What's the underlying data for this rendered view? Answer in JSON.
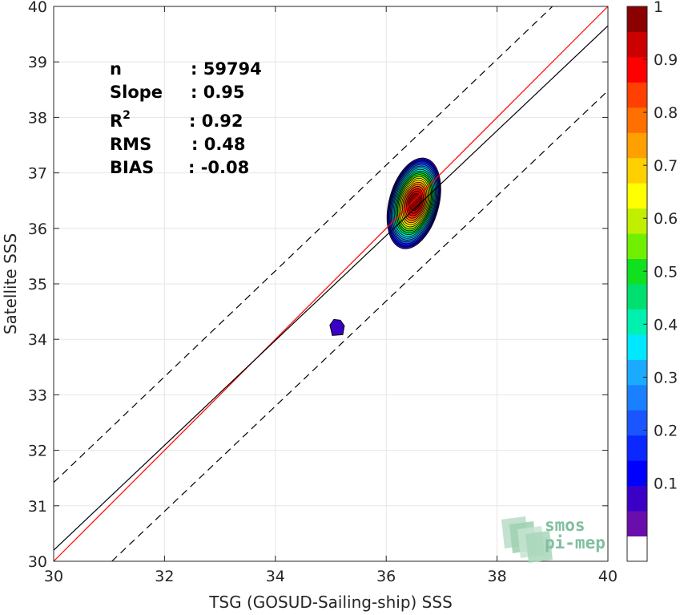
{
  "chart_data": {
    "type": "scatter",
    "subtype": "density-contour",
    "xlabel": "TSG (GOSUD-Sailing-ship) SSS",
    "ylabel": "Satellite SSS",
    "xlim": [
      30,
      40
    ],
    "ylim": [
      30,
      40
    ],
    "x_ticks": [
      "30",
      "32",
      "34",
      "36",
      "38",
      "40"
    ],
    "y_ticks": [
      "30",
      "31",
      "32",
      "33",
      "34",
      "35",
      "36",
      "37",
      "38",
      "39",
      "40"
    ],
    "grid": true,
    "stats": [
      {
        "key": "n",
        "value": ": 59794"
      },
      {
        "key": "Slope",
        "value": ": 0.95"
      },
      {
        "key": "R",
        "sup": "2",
        "value": ": 0.92"
      },
      {
        "key": "RMS",
        "value": ": 0.48"
      },
      {
        "key": "BIAS",
        "value": ": -0.08"
      }
    ],
    "lines": [
      {
        "name": "one-to-one",
        "color": "#ff0000",
        "x": [
          30,
          40
        ],
        "y": [
          30,
          40
        ]
      },
      {
        "name": "regression",
        "color": "#000000",
        "x": [
          30,
          40
        ],
        "y": [
          30.2,
          39.65
        ]
      },
      {
        "name": "upper-bound",
        "color": "#000000",
        "dash": true,
        "x": [
          30,
          39.0
        ],
        "y": [
          31.42,
          40
        ]
      },
      {
        "name": "lower-bound",
        "color": "#000000",
        "dash": true,
        "x": [
          31.05,
          40
        ],
        "y": [
          30,
          38.48
        ]
      }
    ],
    "density_center": {
      "x": 36.5,
      "y": 36.45
    },
    "secondary_blob": {
      "x": 35.1,
      "y": 34.2,
      "level": 0.1
    },
    "contour_levels": [
      0.05,
      0.1,
      0.15,
      0.2,
      0.25,
      0.3,
      0.35,
      0.4,
      0.45,
      0.5,
      0.55,
      0.6,
      0.65,
      0.7,
      0.75,
      0.8,
      0.85,
      0.9,
      0.95,
      1.0
    ],
    "colorbar": {
      "ticks": [
        "0.1",
        "0.2",
        "0.3",
        "0.4",
        "0.5",
        "0.6",
        "0.7",
        "0.8",
        "0.9",
        "1"
      ],
      "tick_values": [
        0.1,
        0.2,
        0.3,
        0.4,
        0.5,
        0.6,
        0.7,
        0.8,
        0.9,
        1.0
      ],
      "colors": [
        "#ffffff",
        "#6a0dad",
        "#3a00c8",
        "#0000ff",
        "#0a28ff",
        "#1a55ff",
        "#1a80ff",
        "#1aaaff",
        "#00e8ff",
        "#00f0b0",
        "#00e070",
        "#10e020",
        "#70f000",
        "#c0f000",
        "#ffff00",
        "#ffd000",
        "#ffa000",
        "#ff7000",
        "#ff4000",
        "#ff0000",
        "#cc0000",
        "#8b0000"
      ]
    },
    "logo": [
      "smos",
      "pi-mep"
    ]
  }
}
